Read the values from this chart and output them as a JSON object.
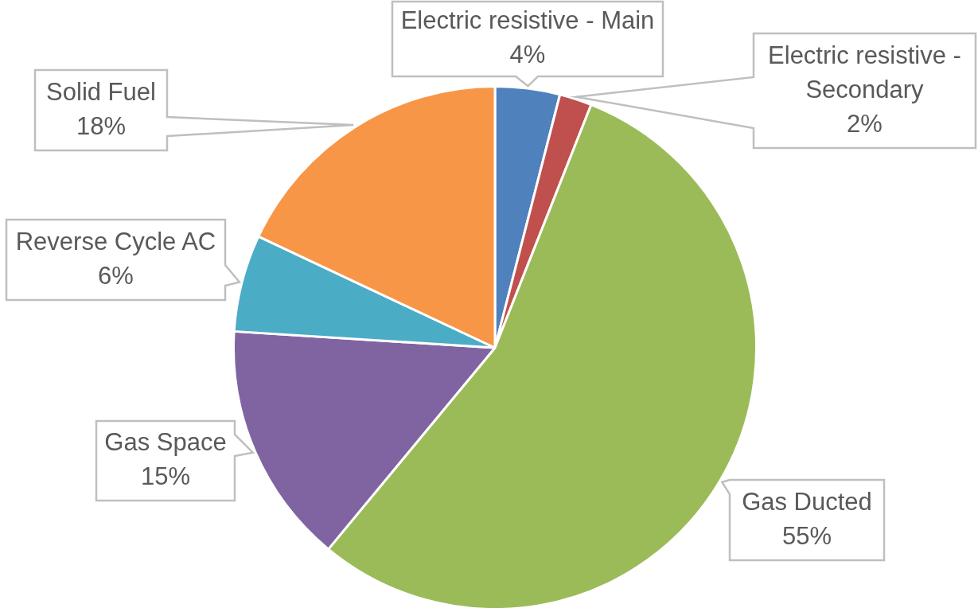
{
  "chart_data": {
    "type": "pie",
    "categories": [
      "Electric resistive - Main",
      "Electric resistive - Secondary",
      "Gas Ducted",
      "Gas Space",
      "Reverse Cycle AC",
      "Solid Fuel"
    ],
    "values": [
      4,
      2,
      55,
      15,
      6,
      18
    ],
    "colors": [
      "#4f81bd",
      "#c0504d",
      "#9bbb59",
      "#8064a2",
      "#4bacc6",
      "#f79646"
    ],
    "value_labels": [
      "4%",
      "2%",
      "55%",
      "15%",
      "6%",
      "18%"
    ]
  }
}
